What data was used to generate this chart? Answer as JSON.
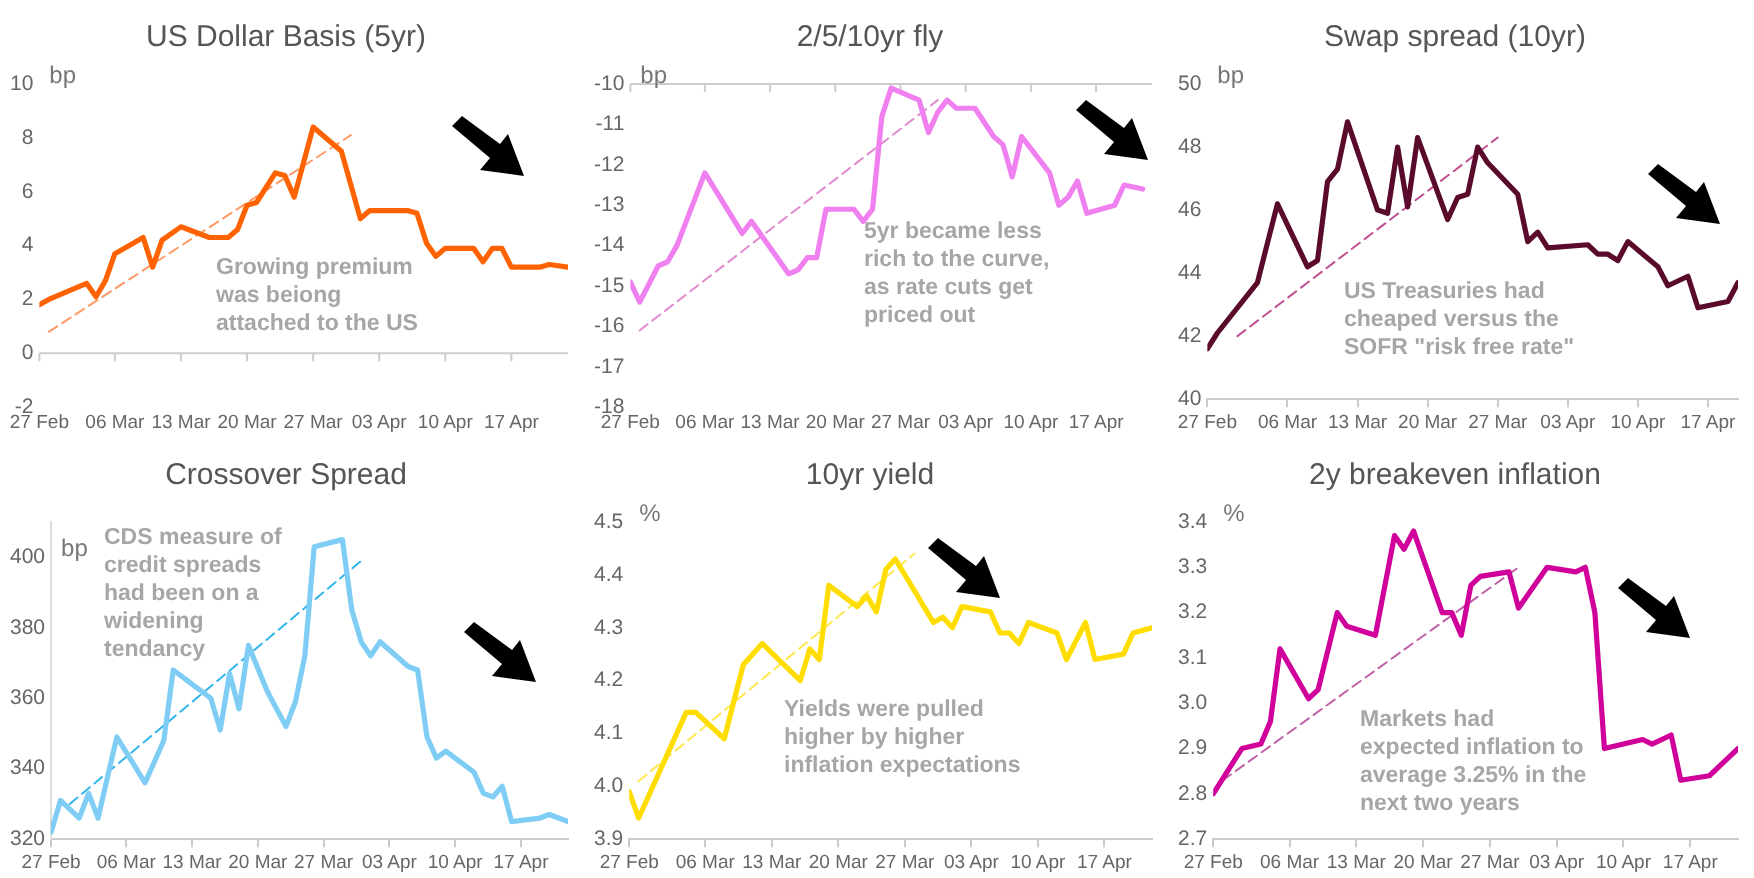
{
  "chart_data": [
    {
      "type": "line",
      "title": "US Dollar Basis (5yr)",
      "ylabel": "bp",
      "xlim": [
        "--02-27",
        "--04-23"
      ],
      "ylim": [
        -2,
        10
      ],
      "yticks": [
        -2,
        0,
        2,
        4,
        6,
        8,
        10
      ],
      "xticks": [
        {
          "value": "--02-27",
          "label": "27 Feb"
        },
        {
          "value": "--03-06",
          "label": "06 Mar"
        },
        {
          "value": "--03-13",
          "label": "13 Mar"
        },
        {
          "value": "--03-20",
          "label": "20 Mar"
        },
        {
          "value": "--03-27",
          "label": "27 Mar"
        },
        {
          "value": "--04-03",
          "label": "03 Apr"
        },
        {
          "value": "--04-10",
          "label": "10 Apr"
        },
        {
          "value": "--04-17",
          "label": "17 Apr"
        }
      ],
      "ref_lines": [
        {
          "axis": "y",
          "value": 0,
          "color": "#cccccc"
        }
      ],
      "grid": false,
      "legend": false,
      "marker": "none",
      "annotations": [
        "Growing premium\nwas beiong\nattached to the US"
      ],
      "series": [
        {
          "color": "#ff6200",
          "line_style": "solid",
          "x": [
            "--02-27",
            "--02-28",
            "--03-01",
            "--03-03",
            "--03-04",
            "--03-05",
            "--03-06",
            "--03-09",
            "--03-10",
            "--03-11",
            "--03-13",
            "--03-16",
            "--03-18",
            "--03-19",
            "--03-20",
            "--03-21",
            "--03-23",
            "--03-24",
            "--03-25",
            "--03-27",
            "--03-30",
            "--04-01",
            "--04-02",
            "--04-06",
            "--04-07",
            "--04-08",
            "--04-09",
            "--04-10",
            "--04-13",
            "--04-14",
            "--04-15",
            "--04-16",
            "--04-17",
            "--04-20",
            "--04-21",
            "--04-23"
          ],
          "values": [
            1.8,
            2.0,
            2.3,
            2.6,
            2.1,
            2.7,
            3.7,
            4.3,
            3.2,
            4.2,
            4.7,
            4.3,
            4.3,
            4.6,
            5.5,
            5.6,
            6.7,
            6.6,
            5.8,
            8.4,
            7.5,
            5.0,
            5.3,
            5.3,
            5.2,
            4.1,
            3.6,
            3.9,
            3.9,
            3.4,
            3.9,
            3.9,
            3.2,
            3.2,
            3.3,
            3.2
          ]
        },
        {
          "type": "line",
          "color": "#ff9a66",
          "line_style": "dashed",
          "x": [
            "--02-28",
            "--03-31"
          ],
          "values": [
            0.8,
            8.1
          ]
        }
      ]
    },
    {
      "type": "line",
      "title": "2/5/10yr fly",
      "ylabel": "bp",
      "xlim": [
        "--02-27",
        "--04-23"
      ],
      "ylim": [
        -18,
        -10
      ],
      "yticks": [
        -18,
        -17,
        -16,
        -15,
        -14,
        -13,
        -12,
        -11,
        -10
      ],
      "xticks": [
        {
          "value": "--02-27",
          "label": "27 Feb"
        },
        {
          "value": "--03-06",
          "label": "06 Mar"
        },
        {
          "value": "--03-13",
          "label": "13 Mar"
        },
        {
          "value": "--03-20",
          "label": "20 Mar"
        },
        {
          "value": "--03-27",
          "label": "27 Mar"
        },
        {
          "value": "--04-03",
          "label": "03 Apr"
        },
        {
          "value": "--04-10",
          "label": "10 Apr"
        },
        {
          "value": "--04-17",
          "label": "17 Apr"
        }
      ],
      "ref_lines": [
        {
          "axis": "y",
          "value": -10,
          "color": "#cccccc"
        }
      ],
      "grid": false,
      "legend": false,
      "marker": "none",
      "annotations": [
        "5yr became less\nrich to the curve,\nas rate cuts get\npriced out"
      ],
      "series": [
        {
          "color": "#f07ff0",
          "line_style": "solid",
          "x": [
            "--02-27",
            "--02-28",
            "--03-01",
            "--03-02",
            "--03-03",
            "--03-06",
            "--03-10",
            "--03-11",
            "--03-15",
            "--03-16",
            "--03-17",
            "--03-18",
            "--03-19",
            "--03-22",
            "--03-23",
            "--03-24",
            "--03-25",
            "--03-26",
            "--03-29",
            "--03-30",
            "--03-31",
            "--04-01",
            "--04-02",
            "--04-04",
            "--04-06",
            "--04-07",
            "--04-08",
            "--04-09",
            "--04-12",
            "--04-13",
            "--04-14",
            "--04-15",
            "--04-16",
            "--04-19",
            "--04-20",
            "--04-22"
          ],
          "values": [
            -14.9,
            -15.4,
            -14.5,
            -14.4,
            -14.0,
            -12.2,
            -13.7,
            -13.4,
            -14.7,
            -14.6,
            -14.3,
            -14.3,
            -13.1,
            -13.1,
            -13.4,
            -13.1,
            -10.8,
            -10.1,
            -10.4,
            -11.2,
            -10.7,
            -10.4,
            -10.6,
            -10.6,
            -11.3,
            -11.5,
            -12.3,
            -11.3,
            -12.2,
            -13.0,
            -12.8,
            -12.4,
            -13.2,
            -13.0,
            -12.5,
            -12.6
          ]
        },
        {
          "type": "line",
          "color": "#e08ad0",
          "line_style": "dashed",
          "x": [
            "--02-28",
            "--03-31"
          ],
          "values": [
            -16.1,
            -10.4
          ]
        }
      ]
    },
    {
      "type": "line",
      "title": "Swap spread (10yr)",
      "ylabel": "bp",
      "xlim": [
        "--02-27",
        "--04-20"
      ],
      "ylim": [
        40,
        50
      ],
      "yticks": [
        40,
        42,
        44,
        46,
        48,
        50
      ],
      "xticks": [
        {
          "value": "--02-27",
          "label": "27 Feb"
        },
        {
          "value": "--03-06",
          "label": "06 Mar"
        },
        {
          "value": "--03-13",
          "label": "13 Mar"
        },
        {
          "value": "--03-20",
          "label": "20 Mar"
        },
        {
          "value": "--03-27",
          "label": "27 Mar"
        },
        {
          "value": "--04-03",
          "label": "03 Apr"
        },
        {
          "value": "--04-10",
          "label": "10 Apr"
        },
        {
          "value": "--04-17",
          "label": "17 Apr"
        }
      ],
      "grid": false,
      "legend": false,
      "marker": "none",
      "annotations": [
        "US Treasuries had\ncheaped versus the\nSOFR \"risk free rate\""
      ],
      "series": [
        {
          "color": "#5a0a2a",
          "line_style": "solid",
          "x": [
            "--02-27",
            "--02-28",
            "--03-03",
            "--03-05",
            "--03-08",
            "--03-09",
            "--03-10",
            "--03-11",
            "--03-12",
            "--03-15",
            "--03-16",
            "--03-17",
            "--03-18",
            "--03-19",
            "--03-22",
            "--03-23",
            "--03-24",
            "--03-25",
            "--03-26",
            "--03-29",
            "--03-30",
            "--03-31",
            "--04-01",
            "--04-05",
            "--04-06",
            "--04-07",
            "--04-08",
            "--04-09",
            "--04-12",
            "--04-13",
            "--04-15",
            "--04-16",
            "--04-19",
            "--04-20"
          ],
          "values": [
            41.6,
            42.1,
            43.7,
            46.2,
            44.2,
            44.4,
            46.9,
            47.3,
            48.8,
            46.0,
            45.9,
            48.0,
            46.1,
            48.3,
            45.7,
            46.4,
            46.5,
            48.0,
            47.5,
            46.5,
            45.0,
            45.3,
            44.8,
            44.9,
            44.6,
            44.6,
            44.4,
            45.0,
            44.2,
            43.6,
            43.9,
            42.9,
            43.1,
            43.7
          ]
        },
        {
          "type": "line",
          "color": "#c0508f",
          "line_style": "dashed",
          "x": [
            "--03-01",
            "--03-27"
          ],
          "values": [
            42.0,
            48.3
          ]
        }
      ]
    },
    {
      "type": "line",
      "title": "Crossover Spread",
      "ylabel": "bp",
      "xlim": [
        "--02-27",
        "--04-22"
      ],
      "ylim": [
        320,
        410
      ],
      "yticks": [
        320,
        340,
        360,
        380,
        400
      ],
      "xticks": [
        {
          "value": "--02-27",
          "label": "27 Feb"
        },
        {
          "value": "--03-06",
          "label": "06 Mar"
        },
        {
          "value": "--03-13",
          "label": "13 Mar"
        },
        {
          "value": "--03-20",
          "label": "20 Mar"
        },
        {
          "value": "--03-27",
          "label": "27 Mar"
        },
        {
          "value": "--04-03",
          "label": "03 Apr"
        },
        {
          "value": "--04-10",
          "label": "10 Apr"
        },
        {
          "value": "--04-17",
          "label": "17 Apr"
        }
      ],
      "grid": false,
      "legend": false,
      "marker": "none",
      "annotations": [
        "CDS measure of\ncredit spreads\nhad been on a\nwidening\ntendancy"
      ],
      "series": [
        {
          "color": "#7fcdf5",
          "line_style": "solid",
          "x": [
            "--02-27",
            "--02-28",
            "--03-01",
            "--03-02",
            "--03-03",
            "--03-05",
            "--03-08",
            "--03-10",
            "--03-11",
            "--03-13",
            "--03-15",
            "--03-16",
            "--03-17",
            "--03-18",
            "--03-19",
            "--03-21",
            "--03-23",
            "--03-24",
            "--03-25",
            "--03-26",
            "--03-29",
            "--03-30",
            "--03-31",
            "--04-01",
            "--04-02",
            "--04-05",
            "--04-06",
            "--04-07",
            "--04-08",
            "--04-09",
            "--04-12",
            "--04-13",
            "--04-14",
            "--04-15",
            "--04-16",
            "--04-19",
            "--04-20",
            "--04-22"
          ],
          "values": [
            322,
            331,
            326,
            333,
            326,
            349,
            336,
            348,
            368,
            364,
            360,
            351,
            367,
            357,
            375,
            362,
            352,
            359,
            372,
            403,
            405,
            385,
            376,
            372,
            376,
            369,
            368,
            349,
            343,
            345,
            339,
            333,
            332,
            335,
            325,
            326,
            327,
            325
          ]
        },
        {
          "type": "line",
          "color": "#2fb4ec",
          "line_style": "dashed",
          "x": [
            "--02-29",
            "--03-31"
          ],
          "values": [
            330,
            399
          ]
        }
      ]
    },
    {
      "type": "line",
      "title": "10yr yield",
      "ylabel": "%",
      "xlim": [
        "--02-27",
        "--04-22"
      ],
      "ylim": [
        3.9,
        4.5
      ],
      "yticks": [
        3.9,
        {
          "value": 4,
          "label": "4.0"
        },
        4.1,
        4.2,
        4.3,
        4.4,
        4.5
      ],
      "xticks": [
        {
          "value": "--02-27",
          "label": "27 Feb"
        },
        {
          "value": "--03-06",
          "label": "06 Mar"
        },
        {
          "value": "--03-13",
          "label": "13 Mar"
        },
        {
          "value": "--03-20",
          "label": "20 Mar"
        },
        {
          "value": "--03-27",
          "label": "27 Mar"
        },
        {
          "value": "--04-03",
          "label": "03 Apr"
        },
        {
          "value": "--04-10",
          "label": "10 Apr"
        },
        {
          "value": "--04-17",
          "label": "17 Apr"
        }
      ],
      "grid": false,
      "legend": false,
      "marker": "none",
      "annotations": [
        "Yields were pulled\nhigher by higher\ninflation expectations"
      ],
      "series": [
        {
          "color": "#ffdd00",
          "line_style": "solid",
          "x": [
            "--02-27",
            "--02-28",
            "--03-02",
            "--03-04",
            "--03-05",
            "--03-08",
            "--03-10",
            "--03-12",
            "--03-16",
            "--03-17",
            "--03-18",
            "--03-19",
            "--03-22",
            "--03-23",
            "--03-24",
            "--03-25",
            "--03-26",
            "--03-30",
            "--03-31",
            "--04-01",
            "--04-02",
            "--04-05",
            "--04-06",
            "--04-07",
            "--04-08",
            "--04-09",
            "--04-12",
            "--04-13",
            "--04-15",
            "--04-16",
            "--04-19",
            "--04-20",
            "--04-22"
          ],
          "values": [
            3.99,
            3.94,
            4.06,
            4.14,
            4.14,
            4.09,
            4.23,
            4.27,
            4.2,
            4.26,
            4.24,
            4.38,
            4.34,
            4.36,
            4.33,
            4.41,
            4.43,
            4.31,
            4.32,
            4.3,
            4.34,
            4.33,
            4.29,
            4.29,
            4.27,
            4.31,
            4.29,
            4.24,
            4.31,
            4.24,
            4.25,
            4.29,
            4.3
          ]
        },
        {
          "type": "line",
          "color": "#ffe84d",
          "line_style": "dashed",
          "x": [
            "--02-28",
            "--03-28"
          ],
          "values": [
            4.01,
            4.44
          ]
        }
      ]
    },
    {
      "type": "line",
      "title": "2y breakeven inflation",
      "ylabel": "%",
      "xlim": [
        "--02-27",
        "--04-22"
      ],
      "ylim": [
        2.7,
        3.4
      ],
      "yticks": [
        2.7,
        2.8,
        2.9,
        {
          "value": 3,
          "label": "3.0"
        },
        3.1,
        3.2,
        3.3,
        3.4
      ],
      "xticks": [
        {
          "value": "--02-27",
          "label": "27 Feb"
        },
        {
          "value": "--03-06",
          "label": "06 Mar"
        },
        {
          "value": "--03-13",
          "label": "13 Mar"
        },
        {
          "value": "--03-20",
          "label": "20 Mar"
        },
        {
          "value": "--03-27",
          "label": "27 Mar"
        },
        {
          "value": "--04-03",
          "label": "03 Apr"
        },
        {
          "value": "--04-10",
          "label": "10 Apr"
        },
        {
          "value": "--04-17",
          "label": "17 Apr"
        }
      ],
      "grid": false,
      "legend": false,
      "marker": "none",
      "annotations": [
        "Markets had\nexpected inflation to\naverage 3.25% in the\nnext two years"
      ],
      "series": [
        {
          "color": "#d0009a",
          "line_style": "solid",
          "x": [
            "--02-27",
            "--03-01",
            "--03-03",
            "--03-04",
            "--03-05",
            "--03-08",
            "--03-09",
            "--03-11",
            "--03-12",
            "--03-15",
            "--03-17",
            "--03-18",
            "--03-19",
            "--03-22",
            "--03-23",
            "--03-24",
            "--03-25",
            "--03-26",
            "--03-29",
            "--03-30",
            "--04-02",
            "--04-05",
            "--04-06",
            "--04-07",
            "--04-08",
            "--04-12",
            "--04-13",
            "--04-15",
            "--04-16",
            "--04-19",
            "--04-22"
          ],
          "values": [
            2.8,
            2.9,
            2.91,
            2.96,
            3.12,
            3.01,
            3.03,
            3.2,
            3.17,
            3.15,
            3.37,
            3.34,
            3.38,
            3.2,
            3.2,
            3.15,
            3.26,
            3.28,
            3.29,
            3.21,
            3.3,
            3.29,
            3.3,
            3.2,
            2.9,
            2.92,
            2.91,
            2.93,
            2.83,
            2.84,
            2.9
          ]
        },
        {
          "type": "line",
          "color": "#c060a8",
          "line_style": "dashed",
          "x": [
            "--02-28",
            "--03-30"
          ],
          "values": [
            2.83,
            3.3
          ]
        }
      ]
    }
  ]
}
